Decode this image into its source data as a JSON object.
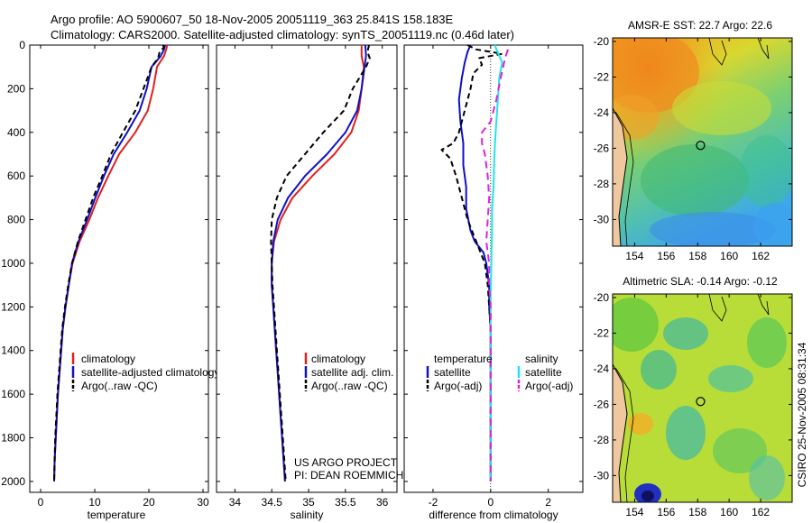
{
  "header": {
    "line1": "Argo profile: AO 5900607_50 18-Nov-2005 20051119_363 25.841S 158.183E",
    "line2": "Climatology: CARS2000. Satellite-adjusted climatology: synTS_20051119.nc (0.46d later)"
  },
  "colors": {
    "red": "#e0201c",
    "blue": "#1010c8",
    "black": "#000000",
    "cyan": "#22e6e6",
    "magenta": "#e020e0"
  },
  "chart_data": [
    {
      "type": "line",
      "xlabel": "temperature",
      "xlim": [
        -2,
        31
      ],
      "ylim": [
        2050,
        0
      ],
      "xticks": [
        0,
        10,
        20,
        30
      ],
      "yticks": [
        0,
        200,
        400,
        600,
        800,
        1000,
        1200,
        1400,
        1600,
        1800,
        2000
      ],
      "legend": [
        "climatology",
        "satellite-adjusted climatology",
        "Argo(..raw -QC)"
      ],
      "series": [
        {
          "name": "climatology",
          "color": "red",
          "dash": "",
          "points": [
            [
              23.4,
              0
            ],
            [
              23.2,
              20
            ],
            [
              22.8,
              50
            ],
            [
              21.5,
              100
            ],
            [
              20.8,
              200
            ],
            [
              19.8,
              300
            ],
            [
              17.5,
              400
            ],
            [
              14.5,
              500
            ],
            [
              12.5,
              600
            ],
            [
              10.6,
              700
            ],
            [
              9.0,
              800
            ],
            [
              7.2,
              900
            ],
            [
              5.9,
              1000
            ],
            [
              5.2,
              1100
            ],
            [
              4.6,
              1200
            ],
            [
              4.1,
              1300
            ],
            [
              3.8,
              1400
            ],
            [
              3.5,
              1500
            ],
            [
              3.2,
              1600
            ],
            [
              3.0,
              1700
            ],
            [
              2.8,
              1800
            ],
            [
              2.6,
              1900
            ],
            [
              2.5,
              2000
            ]
          ]
        },
        {
          "name": "satellite-adjusted climatology",
          "color": "blue",
          "dash": "",
          "points": [
            [
              23.0,
              0
            ],
            [
              22.8,
              20
            ],
            [
              22.2,
              50
            ],
            [
              20.5,
              100
            ],
            [
              19.6,
              200
            ],
            [
              18.3,
              300
            ],
            [
              16.0,
              400
            ],
            [
              13.5,
              500
            ],
            [
              11.7,
              600
            ],
            [
              10.1,
              700
            ],
            [
              8.6,
              800
            ],
            [
              7.0,
              900
            ],
            [
              5.8,
              1000
            ],
            [
              5.2,
              1100
            ],
            [
              4.6,
              1200
            ],
            [
              4.1,
              1300
            ],
            [
              3.8,
              1400
            ],
            [
              3.5,
              1500
            ],
            [
              3.2,
              1600
            ],
            [
              3.0,
              1700
            ],
            [
              2.8,
              1800
            ],
            [
              2.6,
              1900
            ],
            [
              2.5,
              2000
            ]
          ]
        },
        {
          "name": "Argo(..raw -QC)",
          "color": "black",
          "dash": "6,4",
          "points": [
            [
              22.6,
              0
            ],
            [
              22.8,
              10
            ],
            [
              22.0,
              30
            ],
            [
              21.7,
              60
            ],
            [
              20.5,
              100
            ],
            [
              19.0,
              200
            ],
            [
              17.5,
              300
            ],
            [
              15.2,
              400
            ],
            [
              13.0,
              500
            ],
            [
              11.4,
              600
            ],
            [
              9.7,
              700
            ],
            [
              8.3,
              800
            ],
            [
              6.9,
              900
            ],
            [
              5.8,
              1000
            ],
            [
              5.1,
              1100
            ],
            [
              4.5,
              1200
            ],
            [
              4.0,
              1300
            ],
            [
              3.7,
              1400
            ],
            [
              3.4,
              1500
            ],
            [
              3.1,
              1600
            ],
            [
              2.9,
              1700
            ],
            [
              2.7,
              1800
            ],
            [
              2.6,
              1900
            ],
            [
              2.5,
              2000
            ]
          ]
        }
      ]
    },
    {
      "type": "line",
      "xlabel": "salinity",
      "xlim": [
        33.75,
        36.2
      ],
      "ylim": [
        2050,
        0
      ],
      "xticks": [
        34,
        34.5,
        35,
        35.5,
        36
      ],
      "legend": [
        "climatology",
        "satellite adj. clim.",
        "Argo(..raw -QC)"
      ],
      "series": [
        {
          "name": "climatology",
          "color": "red",
          "dash": "",
          "points": [
            [
              35.72,
              0
            ],
            [
              35.72,
              50
            ],
            [
              35.75,
              100
            ],
            [
              35.72,
              200
            ],
            [
              35.68,
              300
            ],
            [
              35.58,
              400
            ],
            [
              35.35,
              500
            ],
            [
              35.05,
              600
            ],
            [
              34.78,
              700
            ],
            [
              34.62,
              800
            ],
            [
              34.53,
              900
            ],
            [
              34.5,
              1000
            ],
            [
              34.5,
              1100
            ],
            [
              34.52,
              1200
            ],
            [
              34.54,
              1300
            ],
            [
              34.56,
              1400
            ],
            [
              34.58,
              1500
            ],
            [
              34.6,
              1600
            ],
            [
              34.62,
              1700
            ],
            [
              34.64,
              1800
            ],
            [
              34.66,
              1900
            ],
            [
              34.68,
              2000
            ]
          ]
        },
        {
          "name": "satellite adj. clim.",
          "color": "blue",
          "dash": "",
          "points": [
            [
              35.77,
              0
            ],
            [
              35.78,
              50
            ],
            [
              35.76,
              100
            ],
            [
              35.72,
              200
            ],
            [
              35.66,
              300
            ],
            [
              35.5,
              400
            ],
            [
              35.25,
              500
            ],
            [
              34.95,
              600
            ],
            [
              34.72,
              700
            ],
            [
              34.58,
              800
            ],
            [
              34.52,
              900
            ],
            [
              34.5,
              1000
            ],
            [
              34.5,
              1100
            ],
            [
              34.52,
              1200
            ],
            [
              34.54,
              1300
            ],
            [
              34.56,
              1400
            ],
            [
              34.58,
              1500
            ],
            [
              34.6,
              1600
            ],
            [
              34.62,
              1700
            ],
            [
              34.64,
              1800
            ],
            [
              34.66,
              1900
            ],
            [
              34.68,
              2000
            ]
          ]
        },
        {
          "name": "Argo(..raw -QC)",
          "color": "black",
          "dash": "6,4",
          "points": [
            [
              35.82,
              0
            ],
            [
              35.8,
              30
            ],
            [
              35.83,
              60
            ],
            [
              35.78,
              100
            ],
            [
              35.6,
              200
            ],
            [
              35.48,
              300
            ],
            [
              35.2,
              400
            ],
            [
              34.95,
              500
            ],
            [
              34.7,
              600
            ],
            [
              34.57,
              700
            ],
            [
              34.5,
              800
            ],
            [
              34.49,
              900
            ],
            [
              34.5,
              1000
            ],
            [
              34.51,
              1100
            ],
            [
              34.53,
              1200
            ],
            [
              34.55,
              1300
            ],
            [
              34.57,
              1400
            ],
            [
              34.59,
              1500
            ],
            [
              34.61,
              1600
            ],
            [
              34.63,
              1700
            ],
            [
              34.65,
              1800
            ],
            [
              34.67,
              1900
            ],
            [
              34.69,
              2000
            ]
          ]
        }
      ]
    },
    {
      "type": "line",
      "xlabel": "difference from climatology",
      "xlim": [
        -3,
        3.2
      ],
      "ylim": [
        2050,
        0
      ],
      "xticks": [
        -2,
        0,
        2
      ],
      "legend_headers": [
        "temperature",
        "salinity"
      ],
      "legend": [
        "satellite",
        "Argo(-adj)",
        "satellite",
        "Argo(-adj)"
      ],
      "series": [
        {
          "name": "temperature satellite",
          "color": "blue",
          "dash": "",
          "points": [
            [
              -0.7,
              0
            ],
            [
              -0.8,
              30
            ],
            [
              -0.9,
              80
            ],
            [
              -1.0,
              150
            ],
            [
              -1.1,
              250
            ],
            [
              -1.05,
              350
            ],
            [
              -0.95,
              450
            ],
            [
              -0.95,
              550
            ],
            [
              -0.85,
              650
            ],
            [
              -0.85,
              750
            ],
            [
              -0.7,
              850
            ],
            [
              -0.55,
              900
            ],
            [
              -0.25,
              950
            ],
            [
              -0.15,
              1000
            ],
            [
              -0.05,
              1100
            ],
            [
              -0.05,
              1200
            ],
            [
              0,
              1300
            ],
            [
              0,
              2000
            ]
          ]
        },
        {
          "name": "temperature Argo(-adj)",
          "color": "black",
          "dash": "6,4",
          "points": [
            [
              -0.8,
              0
            ],
            [
              -0.5,
              20
            ],
            [
              0.4,
              40
            ],
            [
              -0.4,
              60
            ],
            [
              -0.3,
              90
            ],
            [
              -0.6,
              130
            ],
            [
              -0.7,
              200
            ],
            [
              -0.9,
              300
            ],
            [
              -1.1,
              400
            ],
            [
              -1.3,
              450
            ],
            [
              -1.7,
              480
            ],
            [
              -1.4,
              520
            ],
            [
              -1.2,
              600
            ],
            [
              -1.0,
              700
            ],
            [
              -0.8,
              800
            ],
            [
              -0.5,
              900
            ],
            [
              -0.2,
              1000
            ],
            [
              -0.1,
              1100
            ],
            [
              -0.05,
              1200
            ],
            [
              0,
              1300
            ],
            [
              0,
              2000
            ]
          ]
        },
        {
          "name": "salinity satellite",
          "color": "cyan",
          "dash": "",
          "points": [
            [
              0.15,
              0
            ],
            [
              0.2,
              20
            ],
            [
              0.4,
              80
            ],
            [
              0.3,
              150
            ],
            [
              0.25,
              250
            ],
            [
              0.2,
              350
            ],
            [
              0.15,
              450
            ],
            [
              0.12,
              550
            ],
            [
              0.1,
              650
            ],
            [
              0.05,
              750
            ],
            [
              0.05,
              850
            ],
            [
              0.03,
              950
            ],
            [
              0.02,
              1050
            ],
            [
              0,
              1150
            ],
            [
              0,
              2000
            ]
          ]
        },
        {
          "name": "salinity Argo(-adj)",
          "color": "magenta",
          "dash": "8,5",
          "points": [
            [
              0.6,
              20
            ],
            [
              0.5,
              60
            ],
            [
              0.35,
              150
            ],
            [
              0.2,
              250
            ],
            [
              0,
              350
            ],
            [
              -0.3,
              400
            ],
            [
              -0.3,
              450
            ],
            [
              -0.2,
              500
            ],
            [
              -0.1,
              600
            ],
            [
              -0.05,
              700
            ],
            [
              -0.1,
              800
            ],
            [
              -0.15,
              900
            ],
            [
              -0.05,
              1000
            ],
            [
              -0.05,
              1100
            ],
            [
              0,
              1200
            ],
            [
              0,
              2000
            ]
          ]
        }
      ]
    },
    {
      "type": "heatmap",
      "title": "AMSR-E SST: 22.7 Argo: 22.6",
      "xticks": [
        154,
        156,
        158,
        160,
        162
      ],
      "yticks": [
        -20,
        -22,
        -24,
        -26,
        -28,
        -30
      ],
      "xlim": [
        152.6,
        164
      ],
      "ylim": [
        -31.5,
        -19.8
      ],
      "marker": [
        158.183,
        -25.841
      ]
    },
    {
      "type": "heatmap",
      "title": "Altimetric SLA: -0.14 Argo: -0.12",
      "xticks": [
        154,
        156,
        158,
        160,
        162
      ],
      "yticks": [
        -20,
        -22,
        -24,
        -26,
        -28,
        -30
      ],
      "xlim": [
        152.6,
        164
      ],
      "ylim": [
        -31.5,
        -19.8
      ],
      "marker": [
        158.183,
        -25.841
      ]
    }
  ],
  "panel3_note": {
    "line1": "US ARGO PROJECT",
    "line2": "PI: DEAN ROEMMICH"
  },
  "footer": {
    "stamp": "CSIRO 25-Nov-2005 08:31:34"
  }
}
